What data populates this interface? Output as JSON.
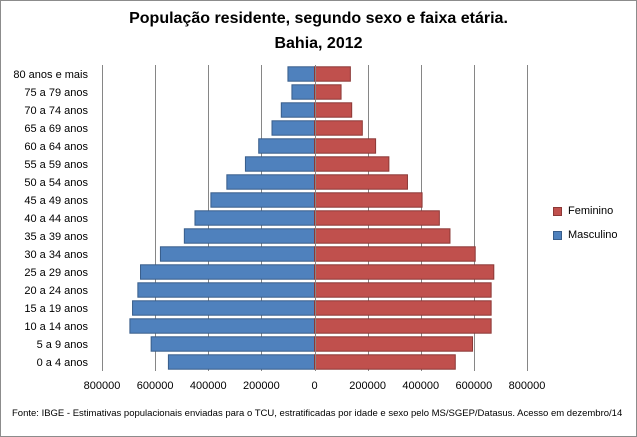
{
  "colors": {
    "feminino_fill": "#C0504D",
    "feminino_stroke": "#8C3836",
    "masculino_fill": "#4F81BD",
    "masculino_stroke": "#385D8A",
    "grid": "#868686"
  },
  "chart_data": {
    "type": "bar",
    "orientation": "horizontal",
    "subtype": "population-pyramid",
    "title": "População residente, segundo sexo e faixa etária.",
    "subtitle": "Bahia, 2012",
    "categories": [
      "0 a 4 anos",
      "5 a 9 anos",
      "10 a 14 anos",
      "15 a 19 anos",
      "20 a 24 anos",
      "25 a 29 anos",
      "30 a 34 anos",
      "35 a 39 anos",
      "40 a 44 anos",
      "45 a 49 anos",
      "50 a 54 anos",
      "55 a 59 anos",
      "60 a 64 anos",
      "65 a 69 anos",
      "70 a 74 anos",
      "75 a 79 anos",
      "80 anos e mais"
    ],
    "series": [
      {
        "name": "Feminino",
        "values": [
          530000,
          595000,
          665000,
          665000,
          665000,
          675000,
          605000,
          510000,
          470000,
          405000,
          350000,
          280000,
          230000,
          180000,
          140000,
          100000,
          135000
        ]
      },
      {
        "name": "Masculino",
        "values": [
          550000,
          615000,
          695000,
          685000,
          665000,
          655000,
          580000,
          490000,
          450000,
          390000,
          330000,
          260000,
          210000,
          160000,
          125000,
          85000,
          100000
        ]
      }
    ],
    "xlim": [
      -800000,
      800000
    ],
    "xticks": [
      -800000,
      -600000,
      -400000,
      -200000,
      0,
      200000,
      400000,
      600000,
      800000
    ],
    "xtick_labels": [
      "800000",
      "600000",
      "400000",
      "200000",
      "0",
      "200000",
      "400000",
      "600000",
      "800000"
    ],
    "xlabel": "",
    "ylabel": "",
    "grid": true,
    "legend_position": "right"
  },
  "source_note": "Fonte:  IBGE - Estimativas populacionais enviadas para o TCU, estratificadas por idade e sexo pelo MS/SGEP/Datasus. Acesso em dezembro/14"
}
